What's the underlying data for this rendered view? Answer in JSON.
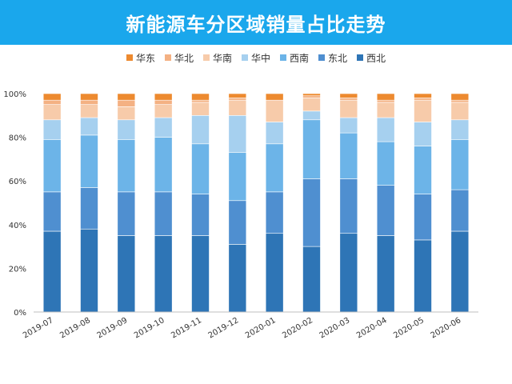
{
  "title": "新能源车分区域销量占比走势",
  "colors": {
    "header_bg": "#1aa7ec"
  },
  "chart_data": {
    "type": "bar",
    "stacked": true,
    "normalized": true,
    "categories": [
      "2019-07",
      "2019-08",
      "2019-09",
      "2019-10",
      "2019-11",
      "2019-12",
      "2020-01",
      "2020-02",
      "2020-03",
      "2020-04",
      "2020-05",
      "2020-06"
    ],
    "series": [
      {
        "name": "西北",
        "color": "#2e75b6",
        "values": [
          37,
          38,
          35,
          35,
          35,
          31,
          36,
          30,
          36,
          35,
          33,
          37
        ]
      },
      {
        "name": "东北",
        "color": "#4f8fd0",
        "values": [
          18,
          19,
          20,
          20,
          19,
          20,
          19,
          31,
          25,
          23,
          21,
          19
        ]
      },
      {
        "name": "西南",
        "color": "#6cb4e8",
        "values": [
          24,
          24,
          24,
          25,
          23,
          22,
          22,
          27,
          21,
          20,
          22,
          23
        ]
      },
      {
        "name": "华中",
        "color": "#a6d0ef",
        "values": [
          9,
          8,
          9,
          9,
          13,
          17,
          10,
          4,
          7,
          11,
          11,
          9
        ]
      },
      {
        "name": "华南",
        "color": "#f7cbaa",
        "values": [
          7,
          6,
          6,
          6,
          6,
          7,
          10,
          6,
          8,
          7,
          10,
          8
        ]
      },
      {
        "name": "华北",
        "color": "#f4b183",
        "values": [
          2,
          2,
          3,
          2,
          1,
          1,
          0,
          1,
          1,
          1,
          1,
          1
        ]
      },
      {
        "name": "华东",
        "color": "#ed8a2f",
        "values": [
          3,
          3,
          3,
          3,
          3,
          2,
          3,
          1,
          2,
          3,
          2,
          3
        ]
      }
    ],
    "legend_order": [
      "华东",
      "华北",
      "华南",
      "华中",
      "西南",
      "东北",
      "西北"
    ],
    "legend_position": "top",
    "yticks": [
      "0%",
      "20%",
      "40%",
      "60%",
      "80%",
      "100%"
    ],
    "ylim": [
      0,
      100
    ],
    "grid": false
  }
}
